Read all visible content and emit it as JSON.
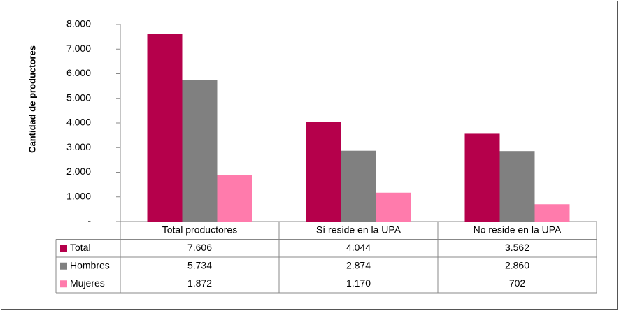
{
  "chart_data": {
    "type": "bar",
    "y_label": "Cantidad de productores",
    "categories": [
      "Total productores",
      "Sí reside en la UPA",
      "No reside en la UPA"
    ],
    "series": [
      {
        "name": "Total",
        "color": "#b5004b",
        "values": [
          7606,
          4044,
          3562
        ],
        "value_labels": [
          "7.606",
          "4.044",
          "3.562"
        ]
      },
      {
        "name": "Hombres",
        "color": "#808080",
        "values": [
          5734,
          2874,
          2860
        ],
        "value_labels": [
          "5.734",
          "2.874",
          "2.860"
        ]
      },
      {
        "name": "Mujeres",
        "color": "#ff7bac",
        "values": [
          1872,
          1170,
          702
        ],
        "value_labels": [
          "1.872",
          "1.170",
          "702"
        ]
      }
    ],
    "ylim": [
      0,
      8000
    ],
    "yticks": [
      {
        "value": 0,
        "label": "-"
      },
      {
        "value": 1000,
        "label": "1.000"
      },
      {
        "value": 2000,
        "label": "2.000"
      },
      {
        "value": 3000,
        "label": "3.000"
      },
      {
        "value": 4000,
        "label": "4.000"
      },
      {
        "value": 5000,
        "label": "5.000"
      },
      {
        "value": 6000,
        "label": "6.000"
      },
      {
        "value": 7000,
        "label": "7.000"
      },
      {
        "value": 8000,
        "label": "8.000"
      }
    ],
    "grid": false
  }
}
